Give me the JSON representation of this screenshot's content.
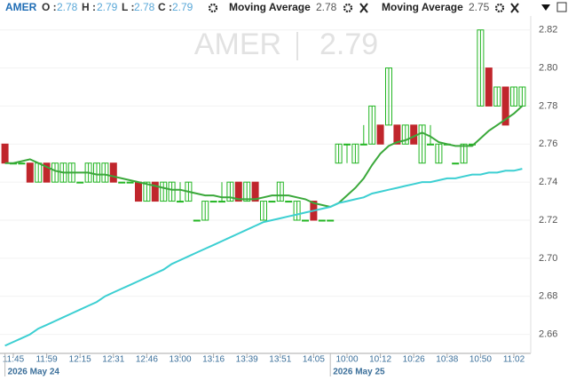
{
  "header": {
    "symbol": "AMER",
    "fields": [
      {
        "label": "O :",
        "value": 2.78
      },
      {
        "label": "H :",
        "value": 2.79
      },
      {
        "label": "L :",
        "value": 2.78
      },
      {
        "label": "C :",
        "value": 2.79
      }
    ]
  },
  "watermark": {
    "symbol": "AMER",
    "price": 2.79
  },
  "chart_data": {
    "type": "candlestick",
    "ohlc": {
      "up_color": "#22b522",
      "down_color": "#c0262c",
      "open": [
        2.76,
        2.75,
        2.75,
        2.75,
        2.74,
        2.75,
        2.74,
        2.74,
        2.74,
        2.74,
        2.74,
        2.74,
        2.74,
        2.75,
        2.74,
        2.74,
        2.74,
        2.73,
        2.74,
        2.73,
        2.73,
        2.73,
        2.73,
        2.72,
        2.72,
        2.73,
        2.73,
        2.73,
        2.74,
        2.73,
        2.74,
        2.72,
        2.73,
        2.73,
        2.73,
        2.72,
        2.72,
        2.73,
        2.72,
        2.72,
        2.75,
        2.76,
        2.75,
        2.76,
        2.76,
        2.77,
        2.77,
        2.77,
        2.76,
        2.77,
        2.75,
        2.76,
        2.75,
        2.76,
        2.75,
        2.75,
        2.76,
        2.78,
        2.8,
        2.78,
        2.79,
        2.78,
        2.78
      ],
      "high": [
        2.76,
        2.75,
        2.75,
        2.75,
        2.75,
        2.75,
        2.75,
        2.75,
        2.75,
        2.74,
        2.75,
        2.75,
        2.75,
        2.75,
        2.74,
        2.74,
        2.74,
        2.74,
        2.74,
        2.74,
        2.74,
        2.74,
        2.74,
        2.72,
        2.73,
        2.73,
        2.74,
        2.74,
        2.74,
        2.74,
        2.74,
        2.73,
        2.73,
        2.74,
        2.73,
        2.73,
        2.72,
        2.73,
        2.72,
        2.72,
        2.76,
        2.76,
        2.76,
        2.77,
        2.78,
        2.77,
        2.8,
        2.77,
        2.77,
        2.77,
        2.77,
        2.77,
        2.76,
        2.76,
        2.75,
        2.76,
        2.76,
        2.82,
        2.8,
        2.79,
        2.79,
        2.79,
        2.79
      ],
      "low": [
        2.75,
        2.75,
        2.75,
        2.74,
        2.74,
        2.74,
        2.74,
        2.74,
        2.74,
        2.74,
        2.74,
        2.74,
        2.74,
        2.74,
        2.74,
        2.74,
        2.73,
        2.73,
        2.73,
        2.73,
        2.73,
        2.73,
        2.73,
        2.72,
        2.72,
        2.73,
        2.73,
        2.73,
        2.73,
        2.73,
        2.73,
        2.72,
        2.73,
        2.73,
        2.73,
        2.72,
        2.72,
        2.72,
        2.72,
        2.72,
        2.75,
        2.75,
        2.75,
        2.76,
        2.76,
        2.76,
        2.77,
        2.76,
        2.76,
        2.76,
        2.75,
        2.76,
        2.75,
        2.76,
        2.75,
        2.75,
        2.76,
        2.78,
        2.78,
        2.78,
        2.77,
        2.78,
        2.78
      ],
      "close": [
        2.75,
        2.75,
        2.75,
        2.74,
        2.75,
        2.74,
        2.75,
        2.75,
        2.75,
        2.74,
        2.75,
        2.75,
        2.75,
        2.74,
        2.74,
        2.74,
        2.73,
        2.74,
        2.73,
        2.74,
        2.74,
        2.73,
        2.74,
        2.72,
        2.73,
        2.73,
        2.73,
        2.74,
        2.73,
        2.74,
        2.73,
        2.73,
        2.73,
        2.74,
        2.73,
        2.73,
        2.72,
        2.72,
        2.72,
        2.72,
        2.76,
        2.76,
        2.76,
        2.76,
        2.78,
        2.76,
        2.8,
        2.76,
        2.77,
        2.76,
        2.77,
        2.76,
        2.76,
        2.76,
        2.75,
        2.76,
        2.76,
        2.82,
        2.78,
        2.79,
        2.77,
        2.79,
        2.79
      ]
    },
    "series": [
      {
        "name": "Moving Average",
        "color": "#3aa83a",
        "legend_value": 2.78,
        "values": [
          2.75,
          2.75,
          2.751,
          2.752,
          2.75,
          2.748,
          2.746,
          2.745,
          2.745,
          2.745,
          2.745,
          2.744,
          2.744,
          2.743,
          2.742,
          2.741,
          2.74,
          2.739,
          2.738,
          2.737,
          2.736,
          2.736,
          2.735,
          2.734,
          2.733,
          2.733,
          2.732,
          2.732,
          2.731,
          2.731,
          2.731,
          2.732,
          2.733,
          2.733,
          2.733,
          2.732,
          2.731,
          2.729,
          2.728,
          2.727,
          2.729,
          2.733,
          2.737,
          2.742,
          2.749,
          2.755,
          2.759,
          2.761,
          2.762,
          2.764,
          2.766,
          2.764,
          2.761,
          2.76,
          2.759,
          2.759,
          2.759,
          2.763,
          2.767,
          2.77,
          2.773,
          2.776,
          2.78
        ]
      },
      {
        "name": "Moving Average",
        "color": "#3ccfd2",
        "legend_value": 2.75,
        "values": [
          2.654,
          2.656,
          2.658,
          2.66,
          2.663,
          2.665,
          2.667,
          2.669,
          2.671,
          2.673,
          2.675,
          2.677,
          2.68,
          2.682,
          2.684,
          2.686,
          2.688,
          2.69,
          2.692,
          2.694,
          2.697,
          2.699,
          2.701,
          2.703,
          2.705,
          2.707,
          2.709,
          2.711,
          2.713,
          2.715,
          2.717,
          2.719,
          2.72,
          2.721,
          2.722,
          2.723,
          2.724,
          2.725,
          2.726,
          2.727,
          2.729,
          2.73,
          2.731,
          2.732,
          2.734,
          2.735,
          2.736,
          2.737,
          2.738,
          2.739,
          2.74,
          2.74,
          2.741,
          2.742,
          2.742,
          2.743,
          2.744,
          2.744,
          2.745,
          2.745,
          2.746,
          2.746,
          2.747
        ]
      }
    ],
    "ylim": [
      2.65,
      2.825
    ],
    "yticks": [
      2.66,
      2.68,
      {
        "value": 2.7,
        "label": "2.70"
      },
      2.72,
      2.74,
      2.76,
      2.78,
      {
        "value": 2.8,
        "label": "2.80"
      },
      2.82
    ],
    "xticks": [
      {
        "value": 1,
        "label": "11:45"
      },
      {
        "value": 5,
        "label": "11:59"
      },
      {
        "value": 9,
        "label": "12:15"
      },
      {
        "value": 13,
        "label": "12:31"
      },
      {
        "value": 17,
        "label": "12:46"
      },
      {
        "value": 21,
        "label": "13:00"
      },
      {
        "value": 25,
        "label": "13:16"
      },
      {
        "value": 29,
        "label": "13:39"
      },
      {
        "value": 33,
        "label": "13:51"
      },
      {
        "value": 37,
        "label": "14:05"
      },
      {
        "value": 41,
        "label": "10:00"
      },
      {
        "value": 45,
        "label": "10:12"
      },
      {
        "value": 49,
        "label": "10:26"
      },
      {
        "value": 53,
        "label": "10:38"
      },
      {
        "value": 57,
        "label": "10:50"
      },
      {
        "value": 61,
        "label": "11:02"
      }
    ],
    "date_labels": [
      {
        "value": 0,
        "label": "2026 May 24"
      },
      {
        "value": 39,
        "label": "2026 May 25"
      }
    ],
    "grid": true
  }
}
